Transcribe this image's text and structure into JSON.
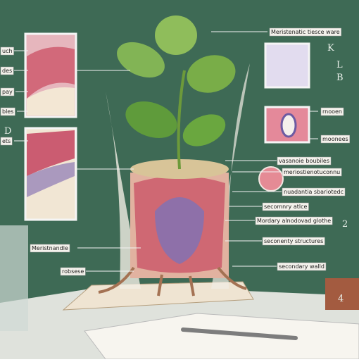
{
  "left_labels": [
    "uch",
    "des",
    "pay",
    "bles",
    "ets",
    "Meristnandle",
    "robsese"
  ],
  "right_labels": [
    "Meristenatic tiesce ware",
    "rnooen",
    "moonees",
    "vasanoie boubiles",
    "meriostienotuconnu",
    "nuadantia sbariotedc",
    "secomnry atlce",
    "Mordary alnodovad glothe",
    "seconenty structures",
    "secondary walld"
  ],
  "board_marks": [
    "K",
    "L",
    "B",
    "D",
    "2",
    "4"
  ]
}
